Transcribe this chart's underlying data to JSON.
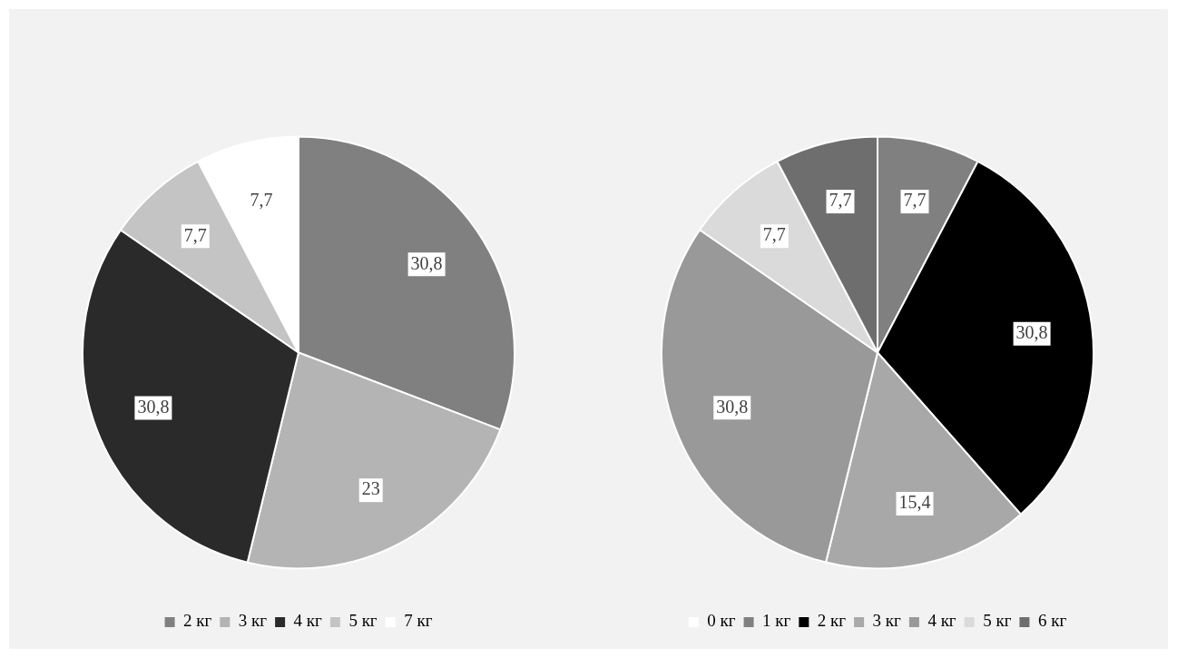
{
  "chart_data": [
    {
      "type": "pie",
      "categories": [
        "2 кг",
        "3 кг",
        "4 кг",
        "5 кг",
        "7 кг"
      ],
      "values": [
        30.8,
        23,
        30.8,
        7.7,
        7.7
      ],
      "value_labels": [
        "30,8",
        "23",
        "30,8",
        "7,7",
        "7,7"
      ],
      "colors": [
        "#808080",
        "#b4b4b4",
        "#2a2a2a",
        "#c4c4c4",
        "#ffffff"
      ],
      "legend": "bottom"
    },
    {
      "type": "pie",
      "categories": [
        "0 кг",
        "1 кг",
        "2 кг",
        "3 кг",
        "4 кг",
        "5 кг",
        "6 кг"
      ],
      "values": [
        0,
        7.7,
        30.8,
        15.4,
        30.8,
        7.7,
        7.7
      ],
      "value_labels": [
        null,
        "7,7",
        "30,8",
        "15,4",
        "30,8",
        "7,7",
        "7,7"
      ],
      "colors": [
        "#ffffff",
        "#808080",
        "#000000",
        "#a8a8a8",
        "#999999",
        "#dadada",
        "#6e6e6e"
      ],
      "legend": "bottom"
    }
  ]
}
